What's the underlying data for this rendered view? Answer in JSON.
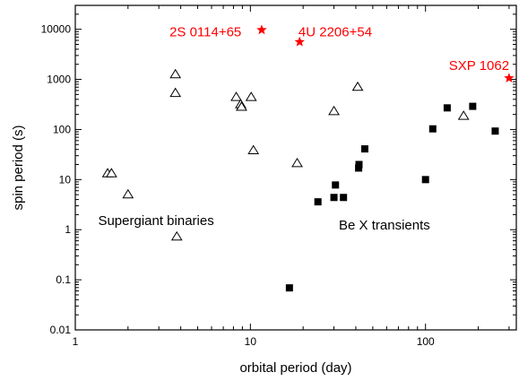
{
  "chart_data": {
    "type": "scatter",
    "xlabel": "orbital period (day)",
    "ylabel": "spin period (s)",
    "x_scale": "log",
    "y_scale": "log",
    "xlim": [
      1,
      330
    ],
    "ylim": [
      0.01,
      30000
    ],
    "x_ticks": [
      {
        "value": 1,
        "label": "1"
      },
      {
        "value": 10,
        "label": "10"
      },
      {
        "value": 100,
        "label": "100"
      }
    ],
    "y_ticks": [
      {
        "value": 0.01,
        "label": "0.01"
      },
      {
        "value": 0.1,
        "label": "0.1"
      },
      {
        "value": 1,
        "label": "1"
      },
      {
        "value": 10,
        "label": "10"
      },
      {
        "value": 100,
        "label": "100"
      },
      {
        "value": 1000,
        "label": "1000"
      },
      {
        "value": 10000,
        "label": "10000"
      }
    ],
    "grid": false,
    "series": [
      {
        "name": "Supergiant binaries",
        "marker": "open-triangle",
        "color": "#000000",
        "points": [
          {
            "x": 1.53,
            "y": 13.2
          },
          {
            "x": 1.61,
            "y": 13.2
          },
          {
            "x": 2.0,
            "y": 5.0
          },
          {
            "x": 3.73,
            "y": 1250
          },
          {
            "x": 3.73,
            "y": 530
          },
          {
            "x": 3.8,
            "y": 0.72
          },
          {
            "x": 8.3,
            "y": 440
          },
          {
            "x": 8.8,
            "y": 315
          },
          {
            "x": 8.9,
            "y": 280
          },
          {
            "x": 10.1,
            "y": 440
          },
          {
            "x": 10.4,
            "y": 38
          },
          {
            "x": 18.5,
            "y": 21
          },
          {
            "x": 30.0,
            "y": 230
          },
          {
            "x": 41.0,
            "y": 700
          },
          {
            "x": 165.0,
            "y": 185
          }
        ]
      },
      {
        "name": "Be X transients",
        "marker": "filled-square",
        "color": "#000000",
        "points": [
          {
            "x": 16.7,
            "y": 0.069
          },
          {
            "x": 24.3,
            "y": 3.6
          },
          {
            "x": 30.0,
            "y": 4.4
          },
          {
            "x": 30.6,
            "y": 7.8
          },
          {
            "x": 34.0,
            "y": 4.4
          },
          {
            "x": 41.5,
            "y": 17
          },
          {
            "x": 41.7,
            "y": 20
          },
          {
            "x": 45.0,
            "y": 41
          },
          {
            "x": 100.0,
            "y": 10
          },
          {
            "x": 110.0,
            "y": 103
          },
          {
            "x": 133.0,
            "y": 270
          },
          {
            "x": 186.0,
            "y": 290
          },
          {
            "x": 250.0,
            "y": 93
          }
        ]
      },
      {
        "name": "",
        "marker": "star",
        "color": "#ff0000",
        "points": [
          {
            "x": 11.6,
            "y": 9700
          },
          {
            "x": 19.1,
            "y": 5600
          },
          {
            "x": 300.0,
            "y": 1062
          }
        ]
      }
    ],
    "annotations": [
      {
        "text": "Supergiant binaries",
        "x": 1.35,
        "y": 1.25,
        "color": "#000000"
      },
      {
        "text": "Be X transients",
        "x": 32,
        "y": 1.0,
        "color": "#000000"
      },
      {
        "text": "2S 0114+65",
        "x": 3.45,
        "y": 7300,
        "color": "#ff0000"
      },
      {
        "text": "4U 2206+54",
        "x": 18.8,
        "y": 7300,
        "color": "#ff0000"
      },
      {
        "text": "SXP 1062",
        "x": 136,
        "y": 1550,
        "color": "#ff0000"
      }
    ]
  }
}
